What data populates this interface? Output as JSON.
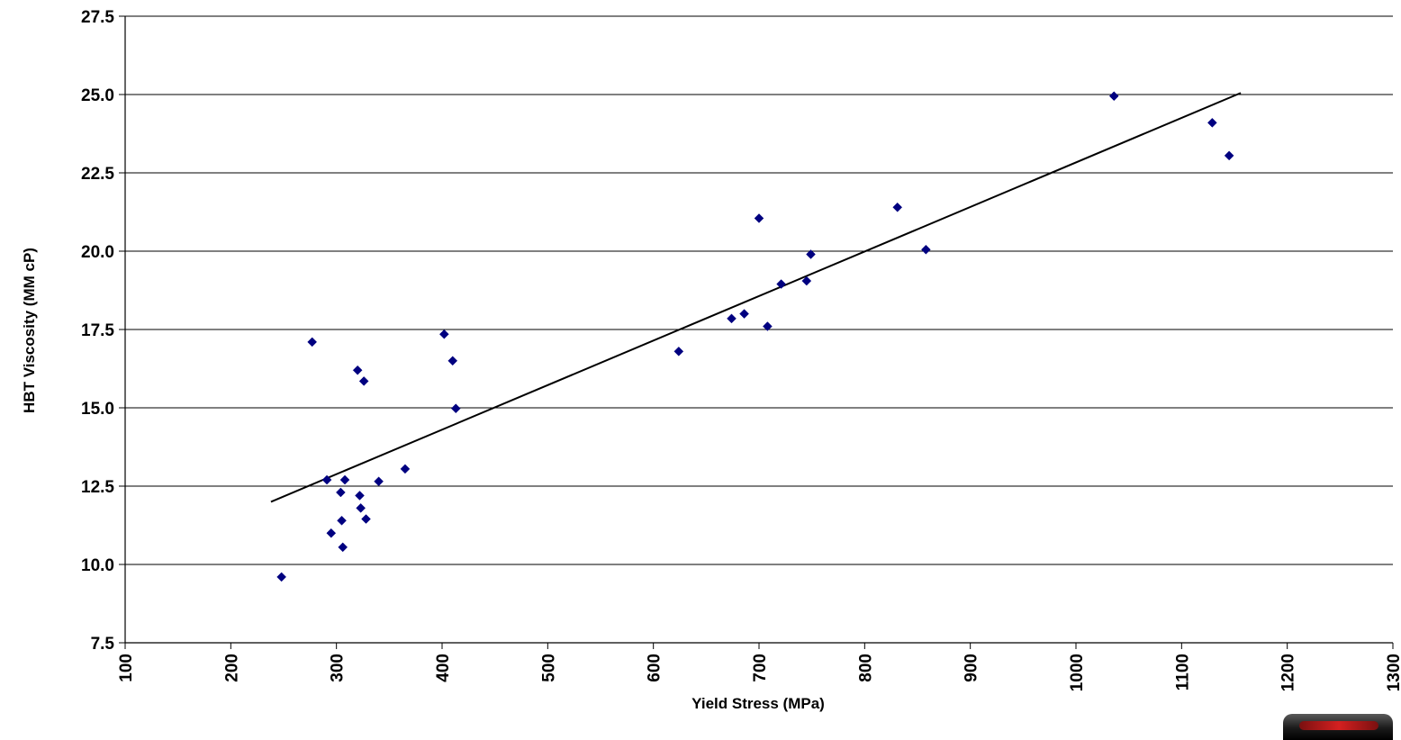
{
  "chart_data": {
    "type": "scatter",
    "xlabel": "Yield Stress (MPa)",
    "ylabel": "HBT Viscosity (MM cP)",
    "xlim": [
      100,
      1300
    ],
    "ylim": [
      7.5,
      27.5
    ],
    "xticks": [
      100,
      200,
      300,
      400,
      500,
      600,
      700,
      800,
      900,
      1000,
      1100,
      1200,
      1300
    ],
    "yticks": [
      "7.5",
      "10.0",
      "12.5",
      "15.0",
      "17.5",
      "20.0",
      "22.5",
      "25.0",
      "27.5"
    ],
    "grid": "horizontal",
    "marker": "diamond",
    "marker_color": "#000080",
    "points": [
      [
        248,
        9.6
      ],
      [
        277,
        17.1
      ],
      [
        291,
        12.7
      ],
      [
        295,
        11.0
      ],
      [
        304,
        12.3
      ],
      [
        305,
        11.4
      ],
      [
        306,
        10.55
      ],
      [
        308,
        12.7
      ],
      [
        320,
        16.2
      ],
      [
        322,
        12.2
      ],
      [
        323,
        11.8
      ],
      [
        326,
        15.85
      ],
      [
        328,
        11.45
      ],
      [
        340,
        12.65
      ],
      [
        365,
        13.05
      ],
      [
        402,
        17.35
      ],
      [
        410,
        16.5
      ],
      [
        413,
        14.98
      ],
      [
        624,
        16.8
      ],
      [
        674,
        17.85
      ],
      [
        686,
        18.0
      ],
      [
        700,
        21.05
      ],
      [
        708,
        17.6
      ],
      [
        721,
        18.95
      ],
      [
        745,
        19.05
      ],
      [
        749,
        19.9
      ],
      [
        831,
        21.4
      ],
      [
        858,
        20.05
      ],
      [
        1036,
        24.95
      ],
      [
        1129,
        24.1
      ],
      [
        1145,
        23.05
      ]
    ],
    "trendline": {
      "type": "linear",
      "x": [
        238,
        1156
      ],
      "y": [
        12.0,
        25.05
      ],
      "color": "#000000"
    }
  },
  "logo": {
    "name": "logo-badge"
  }
}
